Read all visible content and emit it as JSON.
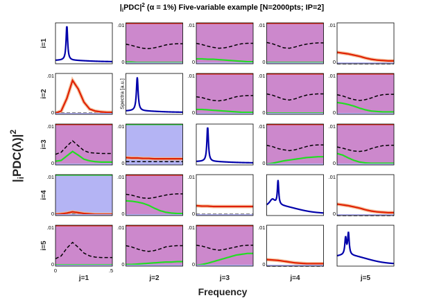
{
  "title": "|iPDC|² (α = 1%) Five-variable example [N=2000pts; IP=2]",
  "title_parts": {
    "pre": "|",
    "sub_i": "i",
    "mid": "PDC|",
    "sup": "2",
    "rest": " (α = 1%) Five-variable example [N=2000pts; IP=2]"
  },
  "ylabel_parts": {
    "pre": "|",
    "sub_i": "i",
    "mid": "PDC(λ)|",
    "sup": "2"
  },
  "xlabel": "Frequency",
  "diag_label": "Spectra [a.u.]",
  "colors": {
    "significance_area": "#cc88cc",
    "nonsignificant_area": "#b4b4f4",
    "threshold_dashed": "#000000",
    "pdc_significant": "#e02000",
    "pdc_nonsignificant": "#22dd22",
    "spectrum": "#0000aa",
    "frame": "#000000"
  },
  "chart_data": {
    "type": "line",
    "title": "|iPDC|² (α = 1%) Five-variable example [N=2000pts; IP=2]",
    "xlabel": "Frequency",
    "ylabel": "|iPDC(λ)|²",
    "xlim": [
      0,
      0.5
    ],
    "ylim": [
      0,
      0.01
    ],
    "x_ticks": [
      "0",
      ".5"
    ],
    "y_ticks": [
      "0",
      ".01"
    ],
    "row_labels": [
      "i=1",
      "i=2",
      "i=3",
      "i=4",
      "i=5"
    ],
    "col_labels": [
      "j=1",
      "j=2",
      "j=3",
      "j=4",
      "j=5"
    ],
    "x": [
      0,
      0.05,
      0.1,
      0.15,
      0.2,
      0.25,
      0.3,
      0.35,
      0.4,
      0.45,
      0.5
    ],
    "cells": [
      [
        {
          "kind": "spectrum",
          "peaks": [
            {
              "f": 0.1,
              "a": 1.0,
              "w": 0.008
            }
          ],
          "base": 0.04
        },
        {
          "kind": "pdc",
          "shade": "sig",
          "pdc_color": "green",
          "pdc": [
            0.0004,
            0.0004,
            0.0003,
            0.0003,
            0.0003,
            0.0003,
            0.0003,
            0.0003,
            0.0003,
            0.0003,
            0.0003
          ],
          "threshold": [
            0.0048,
            0.0045,
            0.0041,
            0.0038,
            0.0037,
            0.0039,
            0.0042,
            0.0046,
            0.0048,
            0.0049,
            0.0049
          ]
        },
        {
          "kind": "pdc",
          "shade": "sig",
          "pdc_color": "green",
          "pdc": [
            0.0012,
            0.0012,
            0.0011,
            0.0011,
            0.001,
            0.0009,
            0.0008,
            0.0007,
            0.0006,
            0.0005,
            0.0005
          ],
          "threshold": [
            0.005,
            0.0047,
            0.0043,
            0.004,
            0.0038,
            0.0039,
            0.0042,
            0.0046,
            0.0049,
            0.005,
            0.005
          ]
        },
        {
          "kind": "pdc",
          "shade": "sig",
          "pdc_color": "green",
          "pdc": [
            0.0003,
            0.0003,
            0.0003,
            0.0003,
            0.0003,
            0.0003,
            0.0003,
            0.0003,
            0.0003,
            0.0003,
            0.0003
          ],
          "threshold": [
            0.0052,
            0.0049,
            0.0044,
            0.0039,
            0.0038,
            0.0041,
            0.0045,
            0.0048,
            0.005,
            0.0051,
            0.0051
          ]
        },
        {
          "kind": "pdc",
          "shade": "none",
          "pdc_color": "red",
          "pdc": [
            0.0028,
            0.0026,
            0.0024,
            0.0021,
            0.0018,
            0.0014,
            0.0011,
            0.0009,
            0.0008,
            0.0007,
            0.0007
          ],
          "threshold": [
            0,
            0,
            0,
            0,
            0,
            0,
            0,
            0,
            0,
            0,
            0
          ]
        }
      ],
      [
        {
          "kind": "pdc",
          "shade": "none",
          "pdc_color": "red",
          "pdc": [
            0.0003,
            0.0008,
            0.0039,
            0.0083,
            0.0062,
            0.003,
            0.0013,
            0.0008,
            0.0006,
            0.0005,
            0.0005
          ],
          "threshold": [
            0.0003,
            0.0003,
            0.0003,
            0.0003,
            0.0003,
            0.0003,
            0.0003,
            0.0003,
            0.0003,
            0.0003,
            0.0003
          ]
        },
        {
          "kind": "spectrum",
          "peaks": [
            {
              "f": 0.1,
              "a": 0.95,
              "w": 0.009
            }
          ],
          "base": 0.04
        },
        {
          "kind": "pdc",
          "shade": "sig",
          "pdc_color": "green",
          "pdc": [
            0.0012,
            0.0012,
            0.0011,
            0.001,
            0.0009,
            0.0008,
            0.0007,
            0.0006,
            0.0005,
            0.0005,
            0.0005
          ],
          "threshold": [
            0.0043,
            0.0041,
            0.0037,
            0.0034,
            0.0033,
            0.0035,
            0.0039,
            0.0043,
            0.0045,
            0.0046,
            0.0046
          ]
        },
        {
          "kind": "pdc",
          "shade": "sig",
          "pdc_color": "green",
          "pdc": [
            0.0003,
            0.0003,
            0.0003,
            0.0003,
            0.0003,
            0.0003,
            0.0003,
            0.0003,
            0.0003,
            0.0003,
            0.0003
          ],
          "threshold": [
            0.005,
            0.0047,
            0.0042,
            0.0037,
            0.0035,
            0.0038,
            0.0043,
            0.0047,
            0.0049,
            0.005,
            0.005
          ]
        },
        {
          "kind": "pdc",
          "shade": "sig",
          "pdc_color": "green",
          "pdc": [
            0.0029,
            0.0027,
            0.0024,
            0.002,
            0.0015,
            0.0011,
            0.0008,
            0.0007,
            0.0006,
            0.0006,
            0.0006
          ],
          "threshold": [
            0.0048,
            0.0045,
            0.004,
            0.0036,
            0.0034,
            0.0036,
            0.004,
            0.0045,
            0.0048,
            0.0049,
            0.0049
          ]
        }
      ],
      [
        {
          "kind": "pdc",
          "shade": "sig",
          "pdc_color": "green",
          "pdc": [
            0.0009,
            0.0011,
            0.0022,
            0.0033,
            0.0024,
            0.0014,
            0.001,
            0.0008,
            0.0007,
            0.0007,
            0.0007
          ],
          "threshold": [
            0.0026,
            0.0031,
            0.0046,
            0.0059,
            0.0047,
            0.0035,
            0.003,
            0.0029,
            0.0028,
            0.0028,
            0.0028
          ]
        },
        {
          "kind": "pdc",
          "shade": "nonsig",
          "pdc_color": "red",
          "pdc": [
            0.0018,
            0.0017,
            0.0017,
            0.0016,
            0.0016,
            0.0015,
            0.0015,
            0.0015,
            0.0015,
            0.0015,
            0.0015
          ],
          "threshold": [
            0.0008,
            0.0008,
            0.0008,
            0.0008,
            0.0008,
            0.0008,
            0.0008,
            0.0008,
            0.0008,
            0.0008,
            0.0008
          ]
        },
        {
          "kind": "spectrum",
          "peaks": [
            {
              "f": 0.1,
              "a": 1.0,
              "w": 0.008
            }
          ],
          "base": 0.04
        },
        {
          "kind": "pdc",
          "shade": "sig",
          "pdc_color": "green",
          "pdc": [
            0.0002,
            0.0004,
            0.0007,
            0.001,
            0.0012,
            0.0014,
            0.0016,
            0.0018,
            0.0019,
            0.002,
            0.002
          ],
          "threshold": [
            0.0048,
            0.0045,
            0.004,
            0.0037,
            0.0035,
            0.0037,
            0.0041,
            0.0045,
            0.0048,
            0.0049,
            0.0049
          ]
        },
        {
          "kind": "pdc",
          "shade": "sig",
          "pdc_color": "green",
          "pdc": [
            0.0028,
            0.0024,
            0.0017,
            0.0011,
            0.0007,
            0.0005,
            0.0004,
            0.0004,
            0.0004,
            0.0004,
            0.0004
          ],
          "threshold": [
            0.0044,
            0.0041,
            0.0037,
            0.0034,
            0.0033,
            0.0035,
            0.004,
            0.0044,
            0.0047,
            0.0048,
            0.0048
          ]
        }
      ],
      [
        {
          "kind": "pdc",
          "shade": "nonsig",
          "pdc_color": "red",
          "pdc": [
            0.0003,
            0.0004,
            0.0006,
            0.0009,
            0.0007,
            0.0005,
            0.0004,
            0.0003,
            0.0003,
            0.0003,
            0.0003
          ],
          "threshold": [
            0.0002,
            0.0002,
            0.0003,
            0.0003,
            0.0003,
            0.0002,
            0.0002,
            0.0002,
            0.0002,
            0.0002,
            0.0002
          ]
        },
        {
          "kind": "pdc",
          "shade": "sig",
          "pdc_color": "green",
          "pdc": [
            0.0036,
            0.0035,
            0.0033,
            0.003,
            0.0025,
            0.0018,
            0.0012,
            0.0008,
            0.0006,
            0.0005,
            0.0005
          ],
          "threshold": [
            0.0052,
            0.005,
            0.0046,
            0.0043,
            0.0042,
            0.0044,
            0.0047,
            0.005,
            0.0052,
            0.0053,
            0.0053
          ]
        },
        {
          "kind": "pdc",
          "shade": "none",
          "pdc_color": "red",
          "pdc": [
            0.0024,
            0.0023,
            0.0023,
            0.0022,
            0.0022,
            0.0022,
            0.0022,
            0.0022,
            0.0022,
            0.0022,
            0.0022
          ],
          "threshold": [
            0.0003,
            0.0003,
            0.0003,
            0.0003,
            0.0003,
            0.0003,
            0.0003,
            0.0003,
            0.0003,
            0.0003,
            0.0003
          ]
        },
        {
          "kind": "spectrum",
          "peaks": [
            {
              "f": 0.1,
              "a": 0.68,
              "w": 0.007
            },
            {
              "f": 0.05,
              "a": 0.18,
              "w": 0.03
            }
          ],
          "base": 0.22
        },
        {
          "kind": "pdc",
          "shade": "none",
          "pdc_color": "red",
          "pdc": [
            0.0028,
            0.0026,
            0.0024,
            0.0021,
            0.0018,
            0.0014,
            0.0011,
            0.0009,
            0.0008,
            0.0007,
            0.0007
          ],
          "threshold": [
            0,
            0,
            0,
            0,
            0,
            0,
            0,
            0,
            0,
            0,
            0
          ]
        }
      ],
      [
        {
          "kind": "pdc",
          "shade": "sig",
          "pdc_color": "green",
          "pdc": [
            0.0003,
            0.0003,
            0.0003,
            0.0003,
            0.0003,
            0.0003,
            0.0003,
            0.0003,
            0.0003,
            0.0003,
            0.0003
          ],
          "threshold": [
            0.0018,
            0.0025,
            0.0044,
            0.0058,
            0.0046,
            0.0032,
            0.0025,
            0.0022,
            0.0021,
            0.0021,
            0.0021
          ]
        },
        {
          "kind": "pdc",
          "shade": "sig",
          "pdc_color": "green",
          "pdc": [
            0.0004,
            0.0004,
            0.0005,
            0.0006,
            0.0007,
            0.0008,
            0.0009,
            0.001,
            0.001,
            0.0011,
            0.0011
          ],
          "threshold": [
            0.005,
            0.0047,
            0.0042,
            0.0038,
            0.0036,
            0.0038,
            0.0042,
            0.0047,
            0.0049,
            0.005,
            0.005
          ]
        },
        {
          "kind": "pdc",
          "shade": "sig",
          "pdc_color": "green",
          "pdc": [
            0.0002,
            0.0004,
            0.0007,
            0.0011,
            0.0015,
            0.0019,
            0.0023,
            0.0027,
            0.0029,
            0.0031,
            0.0031
          ],
          "threshold": [
            0.0051,
            0.0049,
            0.0045,
            0.0041,
            0.0039,
            0.0041,
            0.0044,
            0.0047,
            0.005,
            0.0051,
            0.0051
          ]
        },
        {
          "kind": "pdc",
          "shade": "none",
          "pdc_color": "red",
          "pdc": [
            0.0016,
            0.0015,
            0.0014,
            0.0012,
            0.001,
            0.0008,
            0.0007,
            0.0006,
            0.0006,
            0.0006,
            0.0006
          ],
          "threshold": [
            0,
            0,
            0,
            0,
            0,
            0,
            0,
            0,
            0,
            0,
            0
          ]
        },
        {
          "kind": "spectrum",
          "peaks": [
            {
              "f": 0.1,
              "a": 0.62,
              "w": 0.008
            },
            {
              "f": 0.075,
              "a": 0.48,
              "w": 0.008
            }
          ],
          "base": 0.25
        }
      ]
    ]
  }
}
